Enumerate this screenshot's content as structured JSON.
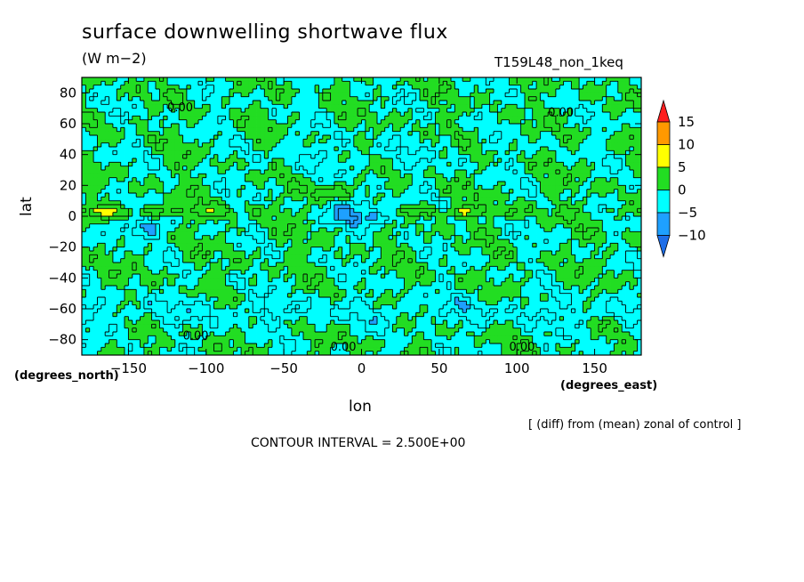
{
  "chart_data": {
    "type": "heatmap",
    "title": "surface downwelling shortwave flux",
    "subtitle": "(W m−2)",
    "experiment": "T159L48_non_1keq",
    "xlabel": "lon",
    "ylabel": "lat",
    "x_units": "(degrees_east)",
    "y_units": "(degrees_north)",
    "xlim": [
      -180,
      180
    ],
    "ylim": [
      -90,
      90
    ],
    "x_ticks": [
      -150,
      -100,
      -50,
      0,
      50,
      100,
      150
    ],
    "y_ticks": [
      80,
      60,
      40,
      20,
      0,
      -20,
      -40,
      -60,
      -80
    ],
    "x_tick_labels": [
      "−150",
      "−100",
      "−50",
      "0",
      "50",
      "100",
      "150"
    ],
    "y_tick_labels": [
      "80",
      "60",
      "40",
      "20",
      "0",
      "−20",
      "−40",
      "−60",
      "−80"
    ],
    "colorbar": {
      "levels": [
        -10,
        -5,
        0,
        5,
        10,
        15
      ],
      "labels": [
        "−10",
        "−5",
        "0",
        "5",
        "10",
        "15"
      ],
      "colors": [
        "#1e6ee8",
        "#1ea0ff",
        "#00ffff",
        "#22dd22",
        "#ffff00",
        "#ff9900",
        "#ff1e1e"
      ]
    },
    "contour_labels": [
      "0.00",
      "0.00",
      "0.00",
      "0.00",
      "0.00"
    ],
    "contour_interval_text": "CONTOUR INTERVAL = 2.500E+00",
    "note": "[ (diff) from (mean) zonal of control ]"
  }
}
